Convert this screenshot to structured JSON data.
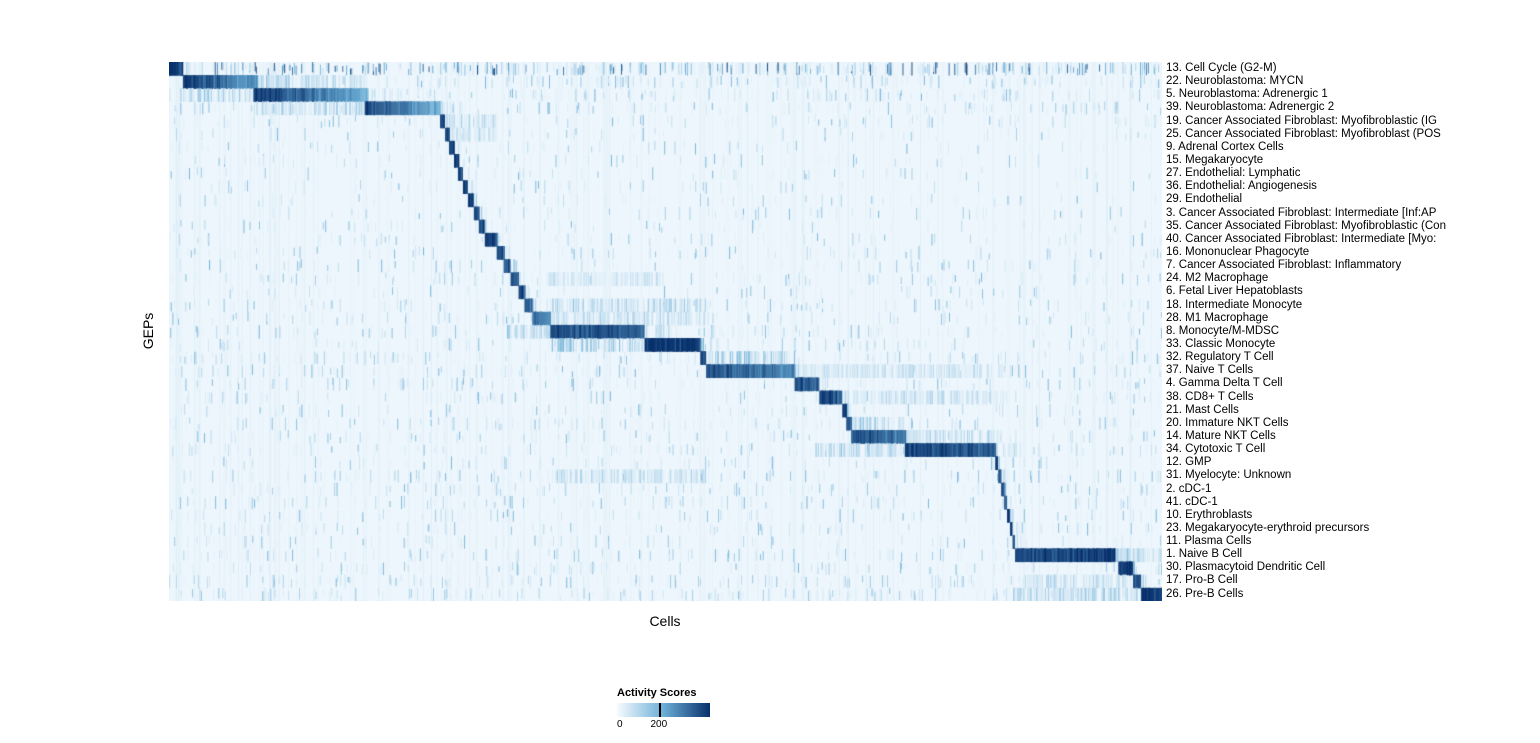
{
  "chart_data": {
    "type": "heatmap",
    "title": "",
    "xlabel": "Cells",
    "ylabel": "GEPs",
    "colorbar": {
      "title": "Activity Scores",
      "min": 0,
      "max": 200,
      "tick_labels": [
        "0",
        "200"
      ],
      "colormap": "Blues",
      "color_low": "#f7fbff",
      "color_mid": "#6baed6",
      "color_high": "#08306b"
    },
    "n_rows": 41,
    "columns": "single cells (unlabeled), ordered by assigned GEP",
    "pattern": "block-diagonal: each GEP row shows high activity scores in its assigned block of cells, with sparse speckled background activity elsewhere",
    "rows": [
      {
        "label": "13. Cell Cycle (G2-M)",
        "block": [
          0.0,
          0.014
        ],
        "i0": 1.0,
        "i1": 0.85,
        "noise": 0.45,
        "noise_max": 0.85
      },
      {
        "label": "22. Neuroblastoma: MYCN",
        "block": [
          0.014,
          0.09
        ],
        "i0": 1.0,
        "i1": 0.5,
        "noise": 0.2,
        "bands": [
          [
            0.09,
            0.2,
            0.18
          ]
        ]
      },
      {
        "label": "5. Neuroblastoma: Adrenergic 1",
        "block": [
          0.085,
          0.2
        ],
        "i0": 0.95,
        "i1": 0.5,
        "noise": 0.18,
        "bands": [
          [
            0.01,
            0.085,
            0.2
          ]
        ]
      },
      {
        "label": "39. Neuroblastoma: Adrenergic 2",
        "block": [
          0.197,
          0.273
        ],
        "i0": 0.9,
        "i1": 0.45,
        "noise": 0.15,
        "bands": [
          [
            0.085,
            0.197,
            0.18
          ]
        ]
      },
      {
        "label": "19. Cancer Associated Fibroblast: Myofibroblastic (IG",
        "block": [
          0.273,
          0.278
        ],
        "i0": 0.95,
        "i1": 0.9,
        "noise": 0.1,
        "bands": [
          [
            0.278,
            0.33,
            0.15
          ]
        ]
      },
      {
        "label": "25. Cancer Associated Fibroblast: Myofibroblast (POS",
        "block": [
          0.278,
          0.282
        ],
        "i0": 0.9,
        "i1": 0.85,
        "noise": 0.08,
        "bands": [
          [
            0.282,
            0.33,
            0.12
          ]
        ]
      },
      {
        "label": "9. Adrenal Cortex Cells",
        "block": [
          0.282,
          0.287
        ],
        "i0": 0.95,
        "i1": 0.9,
        "noise": 0.07
      },
      {
        "label": "15. Megakaryocyte",
        "block": [
          0.287,
          0.291
        ],
        "i0": 0.95,
        "i1": 0.9,
        "noise": 0.07
      },
      {
        "label": "27. Endothelial: Lymphatic",
        "block": [
          0.291,
          0.296
        ],
        "i0": 0.95,
        "i1": 0.9,
        "noise": 0.06
      },
      {
        "label": "36. Endothelial: Angiogenesis",
        "block": [
          0.296,
          0.301
        ],
        "i0": 0.9,
        "i1": 0.85,
        "noise": 0.06
      },
      {
        "label": "29. Endothelial",
        "block": [
          0.301,
          0.307
        ],
        "i0": 0.9,
        "i1": 0.85,
        "noise": 0.07
      },
      {
        "label": "3. Cancer Associated Fibroblast: Intermediate [Inf:AP",
        "block": [
          0.307,
          0.312
        ],
        "i0": 0.9,
        "i1": 0.85,
        "noise": 0.08
      },
      {
        "label": "35. Cancer Associated Fibroblast: Myofibroblastic (Con",
        "block": [
          0.312,
          0.318
        ],
        "i0": 0.9,
        "i1": 0.85,
        "noise": 0.08
      },
      {
        "label": "40. Cancer Associated Fibroblast: Intermediate [Myo:",
        "block": [
          0.318,
          0.33
        ],
        "i0": 0.95,
        "i1": 0.85,
        "noise": 0.08
      },
      {
        "label": "16. Mononuclear Phagocyte",
        "block": [
          0.33,
          0.337
        ],
        "i0": 0.9,
        "i1": 0.8,
        "noise": 0.1
      },
      {
        "label": "7. Cancer Associated Fibroblast: Inflammatory",
        "block": [
          0.337,
          0.344
        ],
        "i0": 0.85,
        "i1": 0.8,
        "noise": 0.08
      },
      {
        "label": "24. M2 Macrophage",
        "block": [
          0.344,
          0.352
        ],
        "i0": 0.9,
        "i1": 0.8,
        "noise": 0.1,
        "bands": [
          [
            0.38,
            0.5,
            0.1
          ]
        ]
      },
      {
        "label": "6. Fetal Liver Hepatoblasts",
        "block": [
          0.352,
          0.358
        ],
        "i0": 0.9,
        "i1": 0.85,
        "noise": 0.06
      },
      {
        "label": "18. Intermediate Monocyte",
        "block": [
          0.358,
          0.366
        ],
        "i0": 0.85,
        "i1": 0.75,
        "noise": 0.12,
        "bands": [
          [
            0.38,
            0.54,
            0.2
          ]
        ]
      },
      {
        "label": "28. M1 Macrophage",
        "block": [
          0.366,
          0.384
        ],
        "i0": 0.8,
        "i1": 0.6,
        "noise": 0.12,
        "bands": [
          [
            0.384,
            0.54,
            0.15
          ]
        ]
      },
      {
        "label": "8. Monocyte/M-MDSC",
        "block": [
          0.384,
          0.479
        ],
        "i0": 0.9,
        "i1": 0.8,
        "noise": 0.12,
        "bands": [
          [
            0.34,
            0.384,
            0.25
          ]
        ]
      },
      {
        "label": "33. Classic Monocyte",
        "block": [
          0.479,
          0.535
        ],
        "i0": 1.0,
        "i1": 0.95,
        "noise": 0.1,
        "bands": [
          [
            0.384,
            0.479,
            0.3
          ]
        ]
      },
      {
        "label": "32. Regulatory T Cell",
        "block": [
          0.535,
          0.541
        ],
        "i0": 0.9,
        "i1": 0.85,
        "noise": 0.15,
        "bands": [
          [
            0.541,
            0.63,
            0.25
          ]
        ]
      },
      {
        "label": "37. Naive T Cells",
        "block": [
          0.541,
          0.63
        ],
        "i0": 0.85,
        "i1": 0.65,
        "noise": 0.15,
        "bands": [
          [
            0.63,
            0.84,
            0.12
          ]
        ]
      },
      {
        "label": "4. Gamma Delta T Cell",
        "block": [
          0.63,
          0.655
        ],
        "i0": 0.9,
        "i1": 0.75,
        "noise": 0.12
      },
      {
        "label": "38. CD8+ T Cells",
        "block": [
          0.655,
          0.678
        ],
        "i0": 0.95,
        "i1": 0.8,
        "noise": 0.12,
        "bands": [
          [
            0.68,
            0.84,
            0.12
          ]
        ]
      },
      {
        "label": "21. Mast Cells",
        "block": [
          0.678,
          0.682
        ],
        "i0": 0.95,
        "i1": 0.95,
        "noise": 0.08
      },
      {
        "label": "20. Immature NKT Cells",
        "block": [
          0.682,
          0.687
        ],
        "i0": 0.85,
        "i1": 0.85,
        "noise": 0.12,
        "bands": [
          [
            0.687,
            0.74,
            0.2
          ]
        ]
      },
      {
        "label": "14. Mature NKT Cells",
        "block": [
          0.687,
          0.741
        ],
        "i0": 0.85,
        "i1": 0.7,
        "noise": 0.12,
        "bands": [
          [
            0.741,
            0.84,
            0.15
          ]
        ]
      },
      {
        "label": "34. Cytotoxic T Cell",
        "block": [
          0.741,
          0.832
        ],
        "i0": 0.95,
        "i1": 0.8,
        "noise": 0.12,
        "bands": [
          [
            0.65,
            0.741,
            0.2
          ]
        ]
      },
      {
        "label": "12. GMP",
        "block": [
          0.832,
          0.835
        ],
        "i0": 0.9,
        "i1": 0.9,
        "noise": 0.08
      },
      {
        "label": "31. Myelocyte: Unknown",
        "block": [
          0.835,
          0.838
        ],
        "i0": 0.85,
        "i1": 0.85,
        "noise": 0.15,
        "bands": [
          [
            0.38,
            0.54,
            0.15
          ]
        ]
      },
      {
        "label": "2. cDC-1",
        "block": [
          0.838,
          0.841
        ],
        "i0": 0.9,
        "i1": 0.9,
        "noise": 0.12
      },
      {
        "label": "41. cDC-1",
        "block": [
          0.841,
          0.844
        ],
        "i0": 0.85,
        "i1": 0.85,
        "noise": 0.12
      },
      {
        "label": "10. Erythroblasts",
        "block": [
          0.844,
          0.847
        ],
        "i0": 0.9,
        "i1": 0.9,
        "noise": 0.1
      },
      {
        "label": "23. Megakaryocyte-erythroid precursors",
        "block": [
          0.847,
          0.8495
        ],
        "i0": 0.85,
        "i1": 0.85,
        "noise": 0.1
      },
      {
        "label": "11. Plasma Cells",
        "block": [
          0.8495,
          0.852
        ],
        "i0": 0.9,
        "i1": 0.9,
        "noise": 0.1
      },
      {
        "label": "1. Naive B Cell",
        "block": [
          0.852,
          0.953
        ],
        "i0": 0.9,
        "i1": 0.95,
        "noise": 0.12,
        "bands": [
          [
            0.953,
            1.0,
            0.2
          ]
        ]
      },
      {
        "label": "30. Plasmacytoid Dendritic Cell",
        "block": [
          0.956,
          0.971
        ],
        "i0": 0.95,
        "i1": 0.95,
        "noise": 0.12
      },
      {
        "label": "17. Pro-B Cell",
        "block": [
          0.971,
          0.979
        ],
        "i0": 0.9,
        "i1": 0.9,
        "noise": 0.15,
        "bands": [
          [
            0.86,
            0.97,
            0.15
          ]
        ]
      },
      {
        "label": "26. Pre-B Cells",
        "block": [
          0.979,
          1.0
        ],
        "i0": 1.0,
        "i1": 0.95,
        "noise": 0.2,
        "bands": [
          [
            0.85,
            0.979,
            0.2
          ]
        ]
      }
    ]
  }
}
